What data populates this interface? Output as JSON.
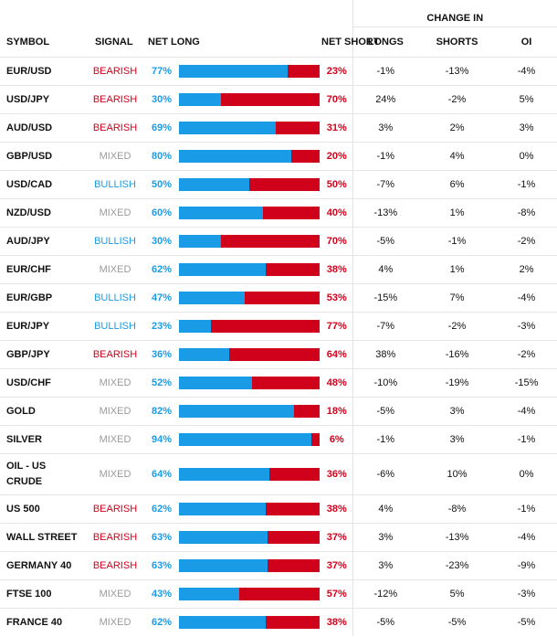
{
  "colors": {
    "long": "#1a9be6",
    "short": "#d0021b",
    "bearish": "#d0021b",
    "bullish": "#1a9be6",
    "mixed": "#9a9a9a"
  },
  "headers": {
    "symbol": "SYMBOL",
    "signal": "SIGNAL",
    "net_long": "NET LONG",
    "net_short": "NET SHORT",
    "change_in": "CHANGE IN",
    "longs": "LONGS",
    "shorts": "SHORTS",
    "oi": "OI"
  },
  "rows": [
    {
      "symbol": "EUR/USD",
      "signal": "BEARISH",
      "net_long": "77%",
      "net_short": "23%",
      "longs": "-1%",
      "shorts": "-13%",
      "oi": "-4%"
    },
    {
      "symbol": "USD/JPY",
      "signal": "BEARISH",
      "net_long": "30%",
      "net_short": "70%",
      "longs": "24%",
      "shorts": "-2%",
      "oi": "5%"
    },
    {
      "symbol": "AUD/USD",
      "signal": "BEARISH",
      "net_long": "69%",
      "net_short": "31%",
      "longs": "3%",
      "shorts": "2%",
      "oi": "3%"
    },
    {
      "symbol": "GBP/USD",
      "signal": "MIXED",
      "net_long": "80%",
      "net_short": "20%",
      "longs": "-1%",
      "shorts": "4%",
      "oi": "0%"
    },
    {
      "symbol": "USD/CAD",
      "signal": "BULLISH",
      "net_long": "50%",
      "net_short": "50%",
      "longs": "-7%",
      "shorts": "6%",
      "oi": "-1%"
    },
    {
      "symbol": "NZD/USD",
      "signal": "MIXED",
      "net_long": "60%",
      "net_short": "40%",
      "longs": "-13%",
      "shorts": "1%",
      "oi": "-8%"
    },
    {
      "symbol": "AUD/JPY",
      "signal": "BULLISH",
      "net_long": "30%",
      "net_short": "70%",
      "longs": "-5%",
      "shorts": "-1%",
      "oi": "-2%"
    },
    {
      "symbol": "EUR/CHF",
      "signal": "MIXED",
      "net_long": "62%",
      "net_short": "38%",
      "longs": "4%",
      "shorts": "1%",
      "oi": "2%"
    },
    {
      "symbol": "EUR/GBP",
      "signal": "BULLISH",
      "net_long": "47%",
      "net_short": "53%",
      "longs": "-15%",
      "shorts": "7%",
      "oi": "-4%"
    },
    {
      "symbol": "EUR/JPY",
      "signal": "BULLISH",
      "net_long": "23%",
      "net_short": "77%",
      "longs": "-7%",
      "shorts": "-2%",
      "oi": "-3%"
    },
    {
      "symbol": "GBP/JPY",
      "signal": "BEARISH",
      "net_long": "36%",
      "net_short": "64%",
      "longs": "38%",
      "shorts": "-16%",
      "oi": "-2%"
    },
    {
      "symbol": "USD/CHF",
      "signal": "MIXED",
      "net_long": "52%",
      "net_short": "48%",
      "longs": "-10%",
      "shorts": "-19%",
      "oi": "-15%"
    },
    {
      "symbol": "GOLD",
      "signal": "MIXED",
      "net_long": "82%",
      "net_short": "18%",
      "longs": "-5%",
      "shorts": "3%",
      "oi": "-4%"
    },
    {
      "symbol": "SILVER",
      "signal": "MIXED",
      "net_long": "94%",
      "net_short": "6%",
      "longs": "-1%",
      "shorts": "3%",
      "oi": "-1%"
    },
    {
      "symbol": "OIL - US CRUDE",
      "signal": "MIXED",
      "net_long": "64%",
      "net_short": "36%",
      "longs": "-6%",
      "shorts": "10%",
      "oi": "0%"
    },
    {
      "symbol": "US 500",
      "signal": "BEARISH",
      "net_long": "62%",
      "net_short": "38%",
      "longs": "4%",
      "shorts": "-8%",
      "oi": "-1%"
    },
    {
      "symbol": "WALL STREET",
      "signal": "BEARISH",
      "net_long": "63%",
      "net_short": "37%",
      "longs": "3%",
      "shorts": "-13%",
      "oi": "-4%"
    },
    {
      "symbol": "GERMANY 40",
      "signal": "BEARISH",
      "net_long": "63%",
      "net_short": "37%",
      "longs": "3%",
      "shorts": "-23%",
      "oi": "-9%"
    },
    {
      "symbol": "FTSE 100",
      "signal": "MIXED",
      "net_long": "43%",
      "net_short": "57%",
      "longs": "-12%",
      "shorts": "5%",
      "oi": "-3%"
    },
    {
      "symbol": "FRANCE 40",
      "signal": "MIXED",
      "net_long": "62%",
      "net_short": "38%",
      "longs": "-5%",
      "shorts": "-5%",
      "oi": "-5%"
    }
  ],
  "chart_data": {
    "type": "bar",
    "categories": [
      "EUR/USD",
      "USD/JPY",
      "AUD/USD",
      "GBP/USD",
      "USD/CAD",
      "NZD/USD",
      "AUD/JPY",
      "EUR/CHF",
      "EUR/GBP",
      "EUR/JPY",
      "GBP/JPY",
      "USD/CHF",
      "GOLD",
      "SILVER",
      "OIL - US CRUDE",
      "US 500",
      "WALL STREET",
      "GERMANY 40",
      "FTSE 100",
      "FRANCE 40"
    ],
    "series": [
      {
        "name": "NET LONG",
        "values": [
          77,
          30,
          69,
          80,
          50,
          60,
          30,
          62,
          47,
          23,
          36,
          52,
          82,
          94,
          64,
          62,
          63,
          63,
          43,
          62
        ]
      },
      {
        "name": "NET SHORT",
        "values": [
          23,
          70,
          31,
          20,
          50,
          40,
          70,
          38,
          53,
          77,
          64,
          48,
          18,
          6,
          36,
          38,
          37,
          37,
          57,
          38
        ]
      }
    ],
    "stacked": true,
    "orientation": "horizontal",
    "xlim": [
      0,
      100
    ]
  }
}
